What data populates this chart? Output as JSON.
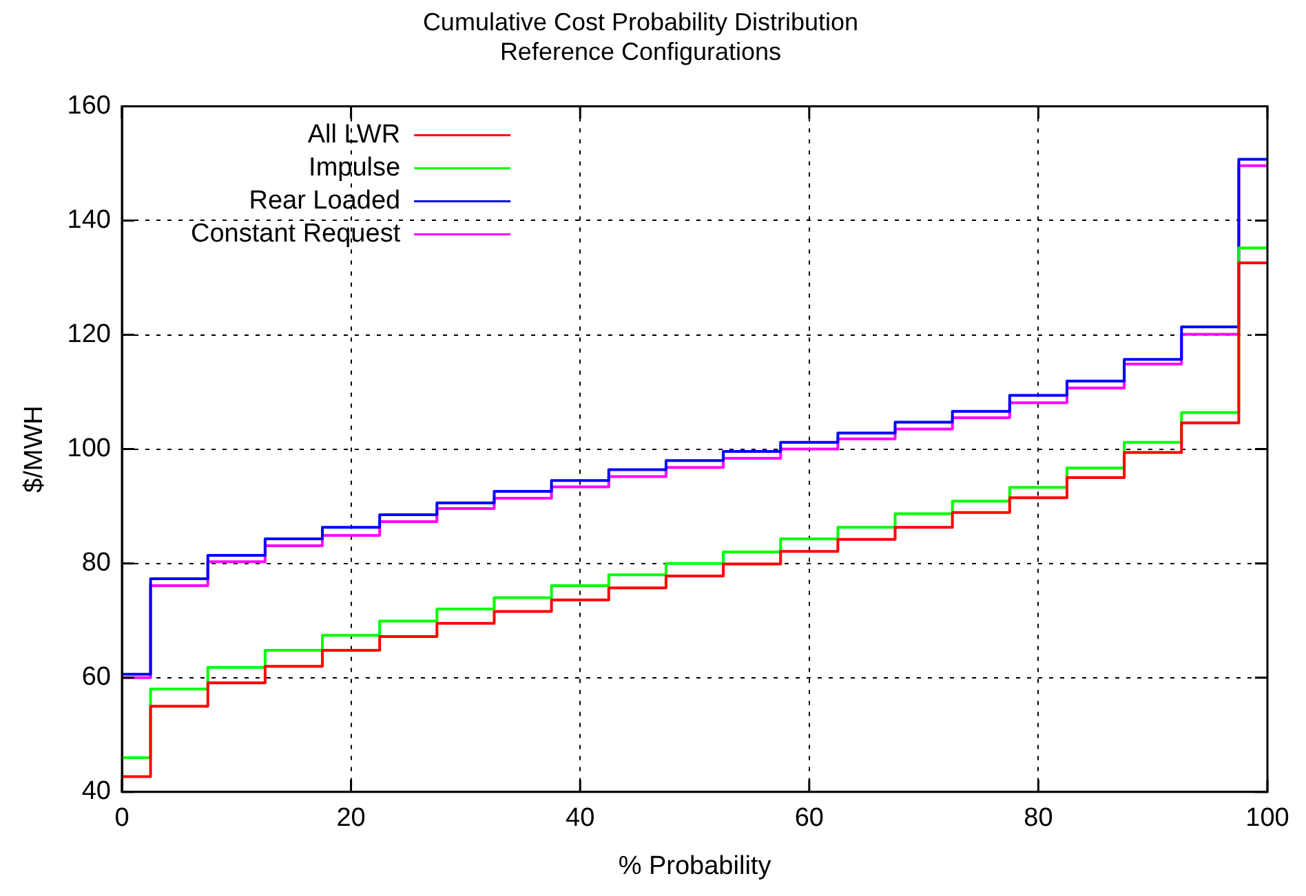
{
  "chart_data": {
    "type": "step",
    "title": "Cumulative Cost Probability Distribution",
    "subtitle": "Reference Configurations",
    "xlabel": "% Probability",
    "ylabel": "$/MWH",
    "x": [
      0,
      2.5,
      7.5,
      12.5,
      17.5,
      22.5,
      27.5,
      32.5,
      37.5,
      42.5,
      47.5,
      52.5,
      57.5,
      62.5,
      67.5,
      72.5,
      77.5,
      82.5,
      87.5,
      92.5,
      97.5,
      100
    ],
    "series": [
      {
        "name": "All LWR",
        "color": "#ff0000",
        "values": [
          42.7,
          55.0,
          59.1,
          62.0,
          64.8,
          67.2,
          69.5,
          71.6,
          73.6,
          75.7,
          77.8,
          79.9,
          82.1,
          84.2,
          86.3,
          88.9,
          91.5,
          95.0,
          99.4,
          104.6,
          132.6,
          132.6
        ]
      },
      {
        "name": "Impulse",
        "color": "#00ff00",
        "values": [
          46.0,
          58.0,
          61.8,
          64.8,
          67.4,
          69.9,
          72.0,
          74.0,
          76.1,
          78.0,
          80.0,
          82.0,
          84.3,
          86.3,
          88.7,
          90.9,
          93.3,
          96.7,
          101.2,
          106.4,
          135.2,
          135.2
        ]
      },
      {
        "name": "Rear Loaded",
        "color": "#0000ff",
        "values": [
          60.6,
          77.3,
          81.4,
          84.3,
          86.3,
          88.5,
          90.6,
          92.6,
          94.5,
          96.4,
          98.0,
          99.6,
          101.2,
          102.8,
          104.7,
          106.6,
          109.4,
          111.9,
          115.7,
          121.4,
          150.7,
          150.7
        ]
      },
      {
        "name": "Constant Request",
        "color": "#ff00ff",
        "values": [
          60.0,
          76.1,
          80.3,
          83.1,
          84.9,
          87.3,
          89.6,
          91.4,
          93.4,
          95.2,
          96.8,
          98.4,
          100.0,
          101.8,
          103.5,
          105.5,
          108.1,
          110.7,
          114.9,
          120.1,
          149.6,
          149.6
        ]
      }
    ],
    "xlim": [
      0,
      100
    ],
    "xticks": [
      0,
      20,
      40,
      60,
      80,
      100
    ],
    "ylim": [
      40,
      160
    ],
    "yticks": [
      40,
      60,
      80,
      100,
      120,
      140,
      160
    ],
    "grid": true,
    "legend": "top left",
    "line_style": "solid",
    "marker": "none"
  }
}
